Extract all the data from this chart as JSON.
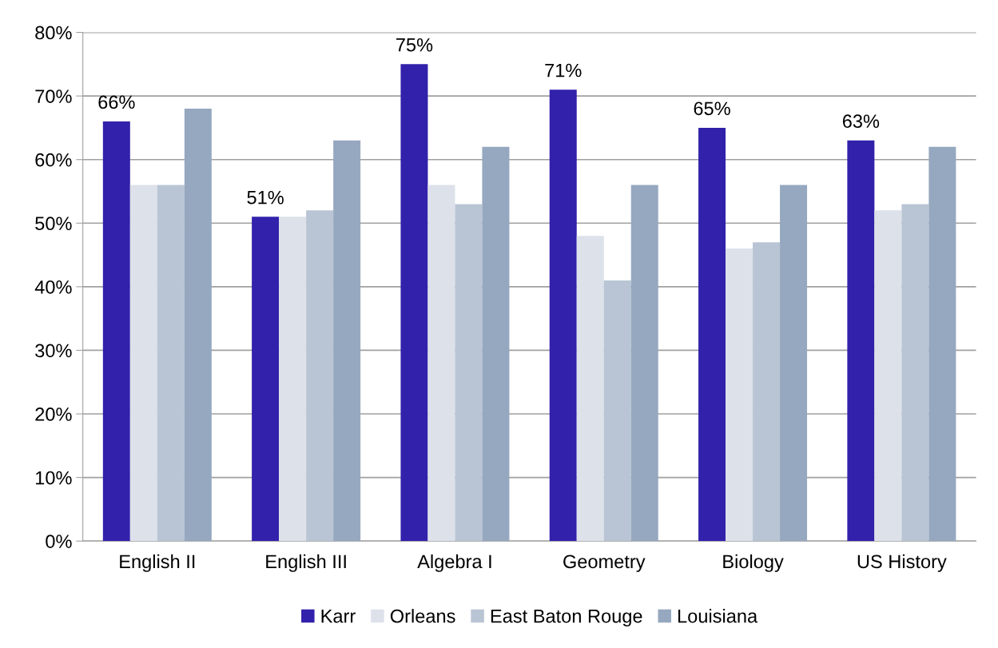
{
  "chart_data": {
    "type": "bar",
    "categories": [
      "English II",
      "English III",
      "Algebra I",
      "Geometry",
      "Biology",
      "US History"
    ],
    "series": [
      {
        "name": "Karr",
        "color": "#3221ab",
        "values": [
          66,
          51,
          75,
          71,
          65,
          63
        ],
        "value_labels": [
          "66%",
          "51%",
          "75%",
          "71%",
          "65%",
          "63%"
        ]
      },
      {
        "name": "Orleans",
        "color": "#dde1ea",
        "values": [
          56,
          51,
          56,
          48,
          46,
          52
        ]
      },
      {
        "name": "East Baton Rouge",
        "color": "#b9c5d4",
        "values": [
          56,
          52,
          53,
          41,
          47,
          53
        ]
      },
      {
        "name": "Louisiana",
        "color": "#96a8bf",
        "values": [
          68,
          63,
          62,
          56,
          56,
          62
        ]
      }
    ],
    "ylim": [
      0,
      80
    ],
    "yticks": [
      {
        "value": 0,
        "label": "0%"
      },
      {
        "value": 10,
        "label": "10%"
      },
      {
        "value": 20,
        "label": "20%"
      },
      {
        "value": 30,
        "label": "30%"
      },
      {
        "value": 40,
        "label": "40%"
      },
      {
        "value": 50,
        "label": "50%"
      },
      {
        "value": 60,
        "label": "60%"
      },
      {
        "value": 70,
        "label": "70%"
      },
      {
        "value": 80,
        "label": "80%"
      }
    ],
    "grid": "y",
    "legend": "bottom"
  }
}
